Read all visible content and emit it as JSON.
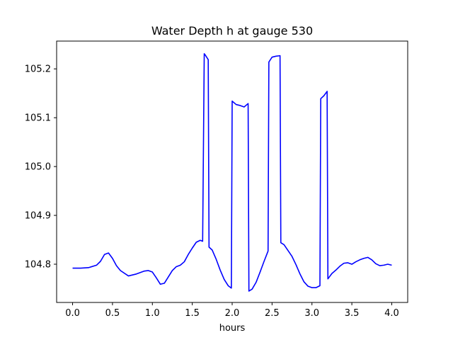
{
  "chart_data": {
    "type": "line",
    "title": "Water Depth h at gauge 530",
    "xlabel": "hours",
    "ylabel": "",
    "xlim": [
      -0.2,
      4.2
    ],
    "ylim": [
      104.7217,
      105.2569
    ],
    "grid": false,
    "xticks": [
      0.0,
      0.5,
      1.0,
      1.5,
      2.0,
      2.5,
      3.0,
      3.5,
      4.0
    ],
    "xtick_labels": [
      "0.0",
      "0.5",
      "1.0",
      "1.5",
      "2.0",
      "2.5",
      "3.0",
      "3.5",
      "4.0"
    ],
    "yticks": [
      104.8,
      104.9,
      105.0,
      105.1,
      105.2
    ],
    "ytick_labels": [
      "104.8",
      "104.9",
      "105.0",
      "105.1",
      "105.2"
    ],
    "series": [
      {
        "color": "#0000ff",
        "x": [
          0.0,
          0.1,
          0.2,
          0.3,
          0.35,
          0.4,
          0.45,
          0.5,
          0.55,
          0.6,
          0.7,
          0.8,
          0.9,
          0.95,
          1.0,
          1.05,
          1.1,
          1.15,
          1.2,
          1.25,
          1.3,
          1.35,
          1.4,
          1.45,
          1.5,
          1.55,
          1.6,
          1.63,
          1.65,
          1.66,
          1.7,
          1.71,
          1.75,
          1.8,
          1.85,
          1.9,
          1.95,
          1.99,
          2.0,
          2.05,
          2.1,
          2.15,
          2.2,
          2.21,
          2.25,
          2.3,
          2.35,
          2.4,
          2.45,
          2.46,
          2.5,
          2.55,
          2.6,
          2.61,
          2.65,
          2.7,
          2.75,
          2.8,
          2.85,
          2.9,
          2.95,
          3.0,
          3.05,
          3.1,
          3.11,
          3.15,
          3.19,
          3.2,
          3.25,
          3.3,
          3.35,
          3.4,
          3.45,
          3.5,
          3.55,
          3.6,
          3.65,
          3.7,
          3.75,
          3.8,
          3.85,
          3.9,
          3.95,
          4.0
        ],
        "y": [
          104.792,
          104.792,
          104.793,
          104.798,
          104.806,
          104.82,
          104.823,
          104.812,
          104.797,
          104.787,
          104.776,
          104.78,
          104.786,
          104.787,
          104.784,
          104.772,
          104.759,
          104.761,
          104.774,
          104.787,
          104.795,
          104.798,
          104.805,
          104.82,
          104.833,
          104.845,
          104.849,
          104.847,
          105.231,
          105.229,
          105.219,
          104.835,
          104.829,
          104.81,
          104.788,
          104.769,
          104.756,
          104.751,
          105.134,
          105.127,
          105.125,
          105.122,
          105.129,
          104.745,
          104.749,
          104.763,
          104.784,
          104.806,
          104.827,
          105.214,
          105.224,
          105.226,
          105.227,
          104.844,
          104.84,
          104.828,
          104.816,
          104.799,
          104.78,
          104.764,
          104.755,
          104.752,
          104.752,
          104.756,
          105.139,
          105.145,
          105.154,
          104.77,
          104.781,
          104.788,
          104.796,
          104.802,
          104.803,
          104.8,
          104.805,
          104.809,
          104.812,
          104.814,
          104.809,
          104.801,
          104.797,
          104.798,
          104.8,
          104.798
        ]
      }
    ]
  }
}
